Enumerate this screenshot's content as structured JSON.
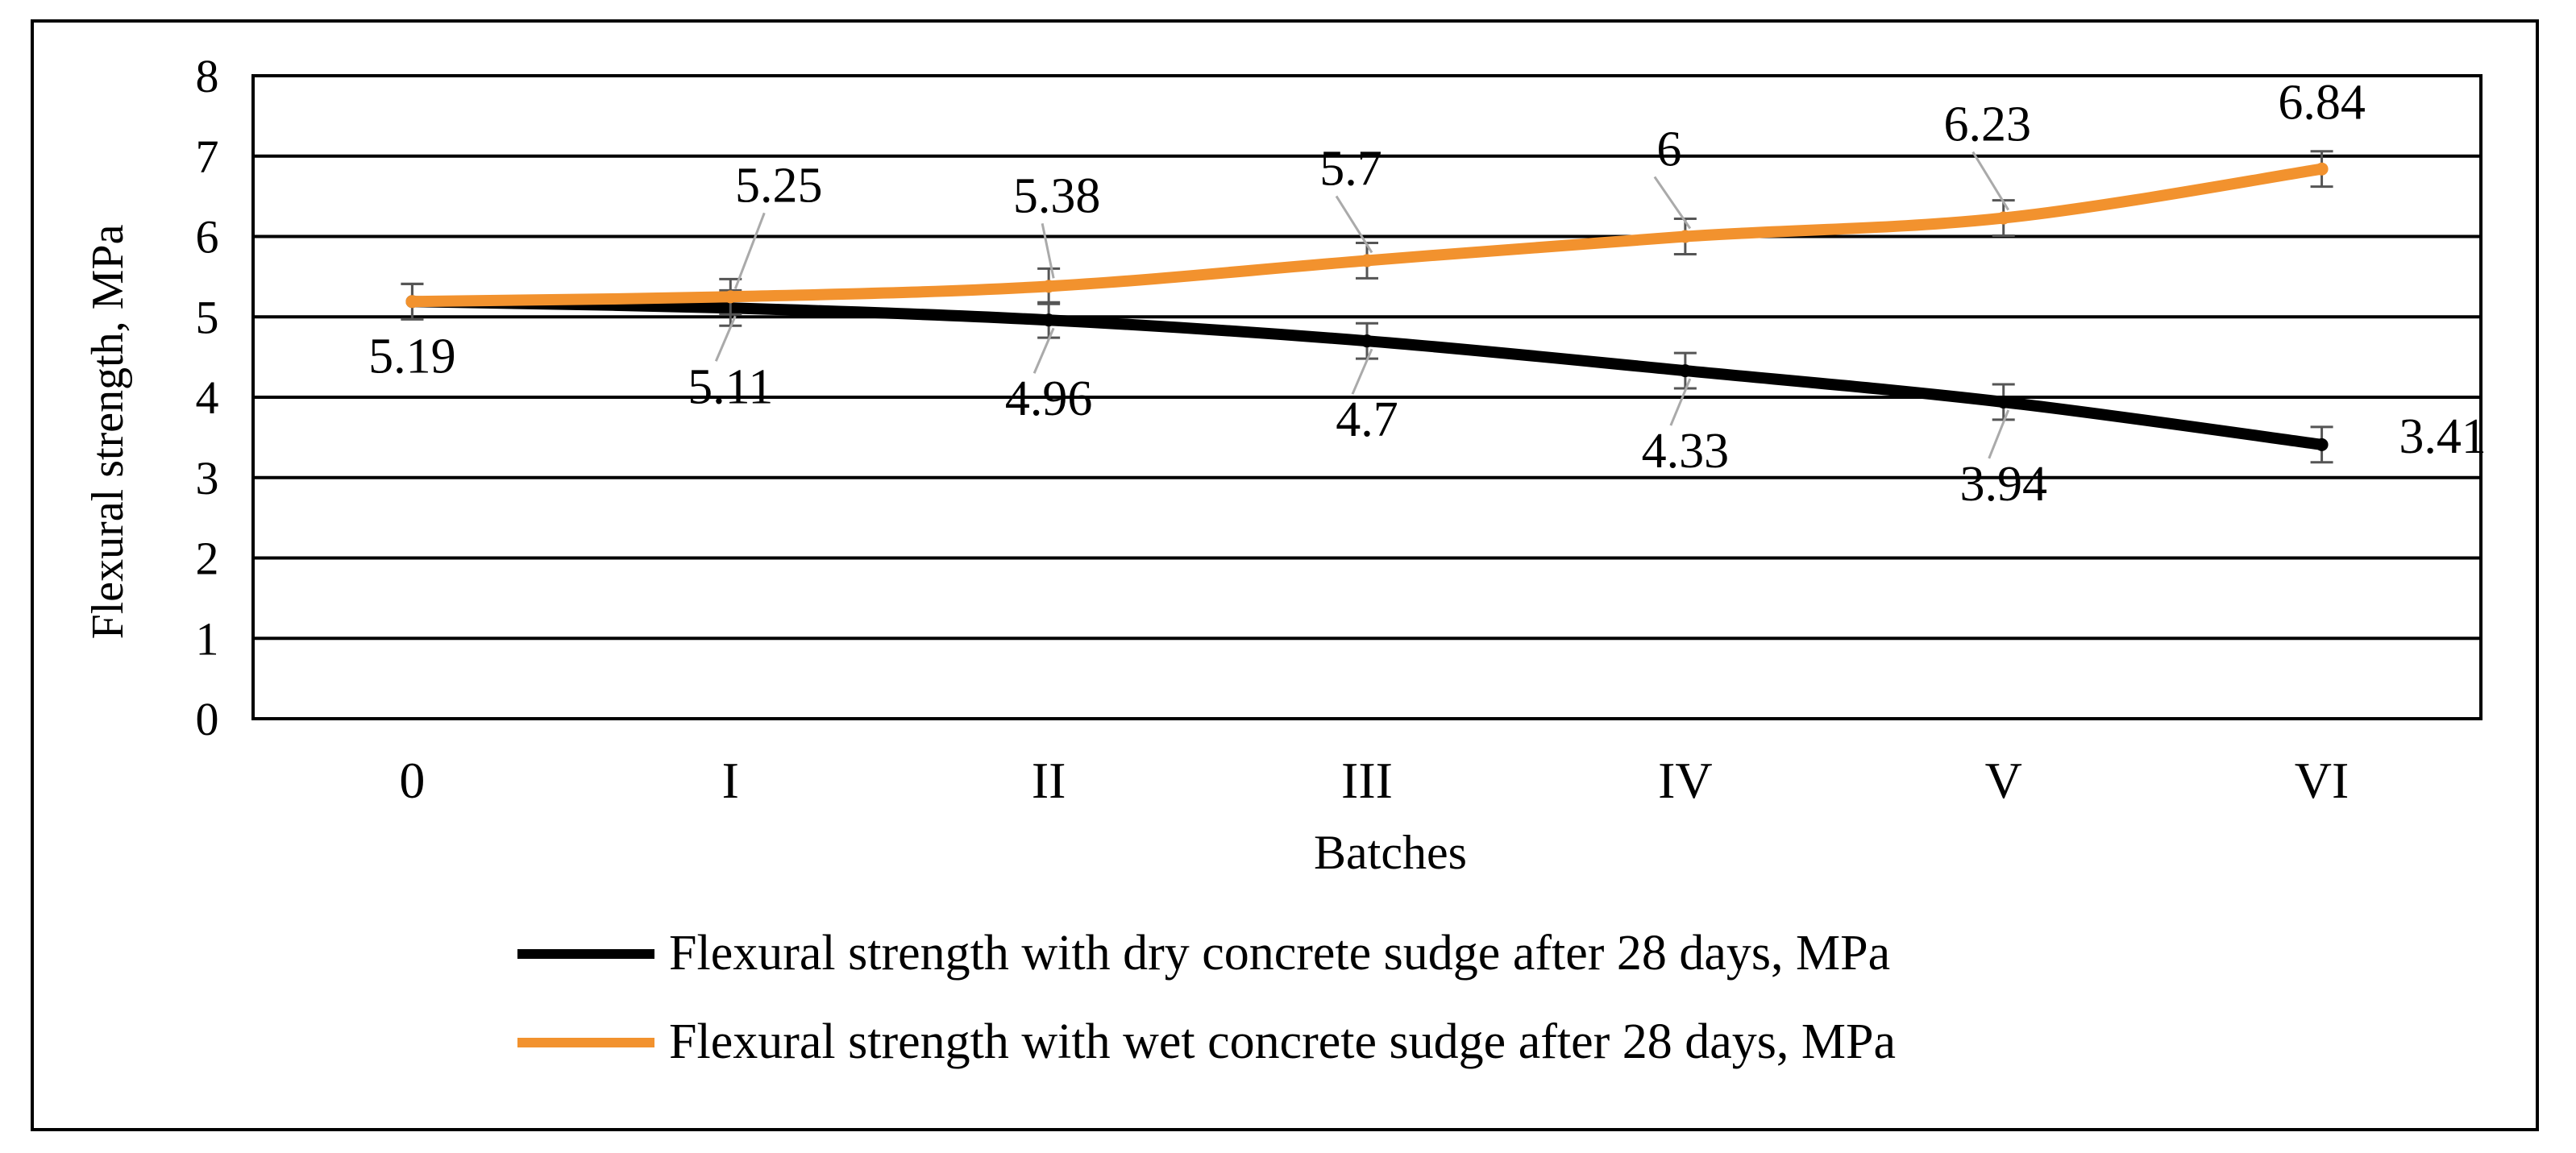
{
  "chart_data": {
    "type": "line",
    "title": "",
    "xlabel": "Batches",
    "ylabel": "Flexural strength, MPa",
    "categories": [
      "0",
      "I",
      "II",
      "III",
      "IV",
      "V",
      "VI"
    ],
    "ylim": [
      0,
      8
    ],
    "yticks": [
      "0",
      "1",
      "2",
      "3",
      "4",
      "5",
      "6",
      "7",
      "8"
    ],
    "grid": true,
    "legend_position": "bottom",
    "error_bar": 0.22,
    "series": [
      {
        "name": "Flexural strength with dry concrete sudge after 28 days, MPa",
        "color": "#000000",
        "values": [
          5.19,
          5.11,
          4.96,
          4.7,
          4.33,
          3.94,
          3.41
        ],
        "labels": [
          "5.19",
          "5.11",
          "4.96",
          "4.7",
          "4.33",
          "3.94",
          "3.41"
        ]
      },
      {
        "name": "Flexural strength with wet concrete sudge after 28 days, MPa",
        "color": "#f2922e",
        "values": [
          5.19,
          5.25,
          5.38,
          5.7,
          6.0,
          6.23,
          6.84
        ],
        "labels": [
          "",
          "5.25",
          "5.38",
          "5.7",
          "6",
          "6.23",
          "6.84"
        ]
      }
    ]
  }
}
